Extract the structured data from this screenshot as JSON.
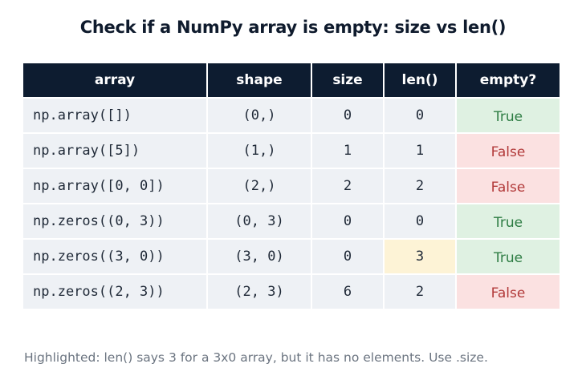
{
  "title": "Check if a NumPy array is empty: size vs len()",
  "table": {
    "headers": [
      "array",
      "shape",
      "size",
      "len()",
      "empty?"
    ],
    "rows": [
      {
        "array": "np.array([])",
        "shape": "(0,)",
        "size": "0",
        "len": "0",
        "empty": "True"
      },
      {
        "array": "np.array([5])",
        "shape": "(1,)",
        "size": "1",
        "len": "1",
        "empty": "False"
      },
      {
        "array": "np.array([0, 0])",
        "shape": "(2,)",
        "size": "2",
        "len": "2",
        "empty": "False"
      },
      {
        "array": "np.zeros((0, 3))",
        "shape": "(0, 3)",
        "size": "0",
        "len": "0",
        "empty": "True"
      },
      {
        "array": "np.zeros((3, 0))",
        "shape": "(3, 0)",
        "size": "0",
        "len": "3",
        "empty": "True"
      },
      {
        "array": "np.zeros((2, 3))",
        "shape": "(2, 3)",
        "size": "6",
        "len": "2",
        "empty": "False"
      }
    ]
  },
  "highlighted_row": 4,
  "colors": {
    "header_bg": "#0d1c30",
    "cell_bg": "#eef1f5",
    "highlight_bg": "#fdf3d6",
    "true_bg": "#dff1e2",
    "true_text": "#2e7d44",
    "false_bg": "#fbe1e1",
    "false_text": "#b23a3a"
  },
  "footnote": "Highlighted: len() says 3 for a 3x0 array, but it has no elements. Use .size."
}
